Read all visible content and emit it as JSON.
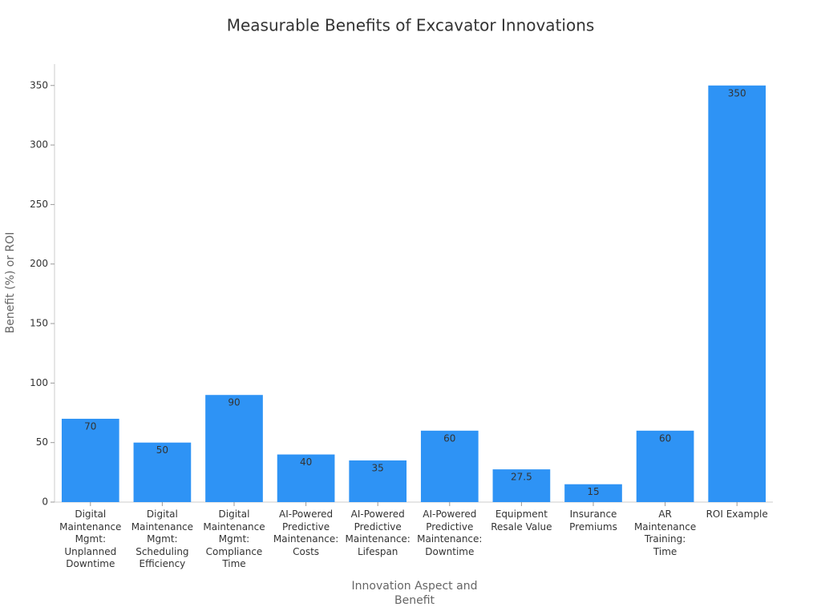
{
  "chart_data": {
    "type": "bar",
    "title": "Measurable Benefits of Excavator Innovations",
    "x_label": "Innovation Aspect and Benefit",
    "y_label": "Benefit (%) or ROI",
    "categories": [
      "Digital Maintenance Mgmt: Unplanned Downtime",
      "Digital Maintenance Mgmt: Scheduling Efficiency",
      "Digital Maintenance Mgmt: Compliance Time",
      "AI-Powered Predictive Maintenance: Costs",
      "AI-Powered Predictive Maintenance: Lifespan",
      "AI-Powered Predictive Maintenance: Downtime",
      "Equipment Resale Value",
      "Insurance Premiums",
      "AR Maintenance Training: Time",
      "ROI Example"
    ],
    "values": [
      70,
      50,
      90,
      40,
      35,
      60,
      27.5,
      15,
      60,
      350
    ],
    "color": "#2e93f5",
    "ylim": [
      0,
      368
    ],
    "yticks": [
      0,
      50,
      100,
      150,
      200,
      250,
      300,
      350
    ],
    "grid": false
  }
}
